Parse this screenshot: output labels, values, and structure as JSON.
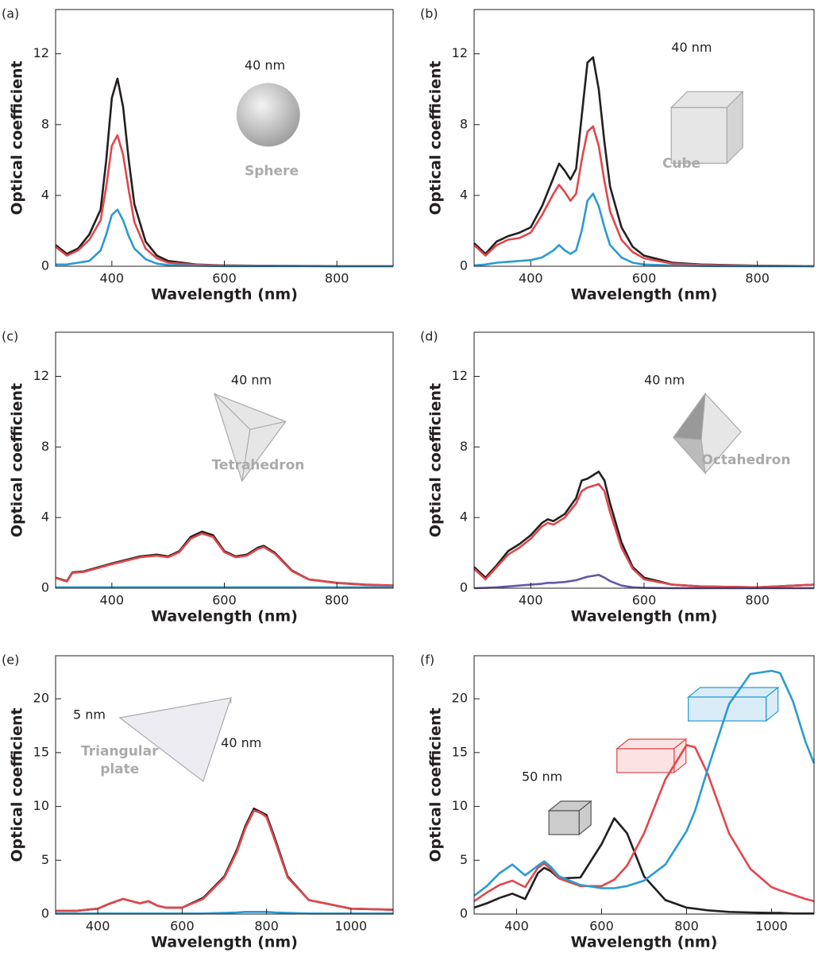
{
  "chart_data": [
    {
      "type": "line",
      "panel_label": "(a)",
      "x_label": "Wavelength (nm)",
      "y_label": "Optical coefficient",
      "xlim": [
        300,
        900
      ],
      "ylim": [
        0,
        14.5
      ],
      "xticks": [
        400,
        600,
        800
      ],
      "yticks": [
        0,
        4,
        8,
        12
      ],
      "annotations": [
        "40 nm",
        "Sphere"
      ],
      "x": [
        300,
        320,
        340,
        360,
        380,
        390,
        400,
        410,
        420,
        430,
        440,
        460,
        480,
        500,
        550,
        600,
        700,
        800,
        900
      ],
      "series": [
        {
          "color": "#231f20",
          "values": [
            1.2,
            0.7,
            1.0,
            1.8,
            3.2,
            6.0,
            9.5,
            10.6,
            9.0,
            6.0,
            3.5,
            1.4,
            0.6,
            0.3,
            0.1,
            0.05,
            0.02,
            0.01,
            0.01
          ]
        },
        {
          "color": "#e0474c",
          "values": [
            1.1,
            0.6,
            0.9,
            1.5,
            2.6,
            4.5,
            6.8,
            7.4,
            6.3,
            4.3,
            2.5,
            1.0,
            0.45,
            0.2,
            0.08,
            0.04,
            0.02,
            0.01,
            0.01
          ]
        },
        {
          "color": "#2a9bd0",
          "values": [
            0.1,
            0.1,
            0.2,
            0.3,
            0.9,
            1.8,
            2.9,
            3.2,
            2.6,
            1.7,
            1.0,
            0.4,
            0.15,
            0.07,
            0.03,
            0.01,
            0.01,
            0,
            0
          ]
        }
      ]
    },
    {
      "type": "line",
      "panel_label": "(b)",
      "x_label": "Wavelength (nm)",
      "y_label": "Optical coefficient",
      "xlim": [
        300,
        900
      ],
      "ylim": [
        0,
        14.5
      ],
      "xticks": [
        400,
        600,
        800
      ],
      "yticks": [
        0,
        4,
        8,
        12
      ],
      "annotations": [
        "40 nm",
        "Cube"
      ],
      "x": [
        300,
        320,
        340,
        360,
        380,
        400,
        420,
        440,
        450,
        460,
        470,
        480,
        490,
        500,
        510,
        520,
        530,
        540,
        560,
        580,
        600,
        650,
        700,
        800,
        900
      ],
      "series": [
        {
          "color": "#231f20",
          "values": [
            1.3,
            0.7,
            1.4,
            1.7,
            1.9,
            2.2,
            3.4,
            5.0,
            5.8,
            5.4,
            4.9,
            5.5,
            8.5,
            11.5,
            11.8,
            10.0,
            7.0,
            4.5,
            2.2,
            1.1,
            0.6,
            0.2,
            0.1,
            0.03,
            0.01
          ]
        },
        {
          "color": "#e0474c",
          "values": [
            1.2,
            0.6,
            1.2,
            1.5,
            1.6,
            1.9,
            2.9,
            4.1,
            4.6,
            4.2,
            3.7,
            4.1,
            6.0,
            7.6,
            7.9,
            6.8,
            4.8,
            3.1,
            1.5,
            0.8,
            0.45,
            0.15,
            0.07,
            0.02,
            0.01
          ]
        },
        {
          "color": "#2a9bd0",
          "values": [
            0.05,
            0.1,
            0.2,
            0.25,
            0.3,
            0.35,
            0.5,
            0.9,
            1.2,
            0.9,
            0.7,
            0.9,
            2.0,
            3.7,
            4.1,
            3.4,
            2.2,
            1.2,
            0.5,
            0.2,
            0.1,
            0.04,
            0.02,
            0,
            0
          ]
        }
      ]
    },
    {
      "type": "line",
      "panel_label": "(c)",
      "x_label": "Wavelength (nm)",
      "y_label": "Optical coefficient",
      "xlim": [
        300,
        900
      ],
      "ylim": [
        0,
        14.5
      ],
      "xticks": [
        400,
        600,
        800
      ],
      "yticks": [
        0,
        4,
        8,
        12
      ],
      "annotations": [
        "40 nm",
        "Tetrahedron"
      ],
      "x": [
        300,
        320,
        330,
        350,
        400,
        450,
        480,
        500,
        520,
        540,
        560,
        580,
        600,
        620,
        640,
        660,
        670,
        690,
        720,
        750,
        800,
        850,
        900
      ],
      "series": [
        {
          "color": "#231f20",
          "values": [
            0.6,
            0.4,
            0.9,
            0.95,
            1.4,
            1.8,
            1.9,
            1.8,
            2.1,
            2.9,
            3.2,
            3.0,
            2.1,
            1.8,
            1.9,
            2.3,
            2.4,
            2.0,
            1.0,
            0.5,
            0.3,
            0.2,
            0.15
          ]
        },
        {
          "color": "#e0474c",
          "values": [
            0.58,
            0.38,
            0.87,
            0.92,
            1.36,
            1.75,
            1.84,
            1.75,
            2.04,
            2.8,
            3.1,
            2.9,
            2.04,
            1.75,
            1.84,
            2.23,
            2.33,
            1.94,
            0.97,
            0.49,
            0.29,
            0.19,
            0.15
          ]
        },
        {
          "color": "#2a9bd0",
          "values": [
            0.05,
            0.05,
            0.05,
            0.05,
            0.05,
            0.05,
            0.05,
            0.05,
            0.05,
            0.05,
            0.05,
            0.05,
            0.05,
            0.05,
            0.05,
            0.05,
            0.05,
            0.05,
            0.05,
            0.05,
            0.05,
            0.05,
            0.05
          ]
        }
      ]
    },
    {
      "type": "line",
      "panel_label": "(d)",
      "x_label": "Wavelength (nm)",
      "y_label": "Optical coefficient",
      "xlim": [
        300,
        900
      ],
      "ylim": [
        0,
        14.5
      ],
      "xticks": [
        400,
        600,
        800
      ],
      "yticks": [
        0,
        4,
        8,
        12
      ],
      "annotations": [
        "40 nm",
        "Octahedron"
      ],
      "x": [
        300,
        320,
        340,
        360,
        380,
        400,
        420,
        430,
        440,
        460,
        480,
        490,
        500,
        510,
        520,
        530,
        540,
        560,
        580,
        600,
        650,
        700,
        800,
        900
      ],
      "series": [
        {
          "color": "#231f20",
          "values": [
            1.2,
            0.6,
            1.3,
            2.1,
            2.5,
            3.0,
            3.7,
            3.9,
            3.8,
            4.2,
            5.1,
            6.1,
            6.2,
            6.4,
            6.6,
            6.1,
            4.8,
            2.6,
            1.2,
            0.6,
            0.2,
            0.1,
            0.05,
            0.2
          ]
        },
        {
          "color": "#e0474c",
          "values": [
            1.1,
            0.5,
            1.2,
            1.9,
            2.3,
            2.8,
            3.5,
            3.7,
            3.6,
            4.0,
            4.8,
            5.5,
            5.7,
            5.8,
            5.9,
            5.5,
            4.3,
            2.3,
            1.1,
            0.5,
            0.2,
            0.1,
            0.05,
            0.2
          ]
        },
        {
          "color": "#6656a8",
          "values": [
            0,
            0.02,
            0.05,
            0.1,
            0.15,
            0.2,
            0.25,
            0.3,
            0.3,
            0.35,
            0.45,
            0.55,
            0.65,
            0.7,
            0.75,
            0.6,
            0.4,
            0.15,
            0.05,
            0.02,
            0,
            0,
            0,
            0
          ]
        }
      ]
    },
    {
      "type": "line",
      "panel_label": "(e)",
      "x_label": "Wavelength (nm)",
      "y_label": "Optical coefficient",
      "xlim": [
        300,
        1100
      ],
      "ylim": [
        0,
        24
      ],
      "xticks": [
        400,
        600,
        800,
        1000
      ],
      "yticks": [
        0,
        5,
        10,
        15,
        20
      ],
      "annotations": [
        "5 nm",
        "40 nm",
        "Triangular",
        "plate"
      ],
      "x": [
        300,
        350,
        400,
        430,
        460,
        490,
        500,
        520,
        540,
        560,
        600,
        650,
        700,
        730,
        750,
        770,
        780,
        790,
        800,
        820,
        850,
        900,
        1000,
        1100
      ],
      "series": [
        {
          "color": "#231f20",
          "values": [
            0.3,
            0.3,
            0.5,
            1.0,
            1.4,
            1.1,
            1.0,
            1.2,
            0.8,
            0.6,
            0.6,
            1.5,
            3.5,
            6.0,
            8.2,
            9.8,
            9.6,
            9.4,
            9.2,
            7.0,
            3.5,
            1.3,
            0.5,
            0.4
          ]
        },
        {
          "color": "#e0474c",
          "values": [
            0.3,
            0.3,
            0.5,
            1.0,
            1.4,
            1.1,
            1.0,
            1.2,
            0.8,
            0.6,
            0.6,
            1.4,
            3.4,
            5.8,
            8.0,
            9.6,
            9.5,
            9.3,
            9.0,
            6.8,
            3.4,
            1.3,
            0.5,
            0.4
          ]
        },
        {
          "color": "#2a9bd0",
          "values": [
            0.05,
            0.05,
            0.05,
            0.05,
            0.05,
            0.05,
            0.05,
            0.05,
            0.05,
            0.05,
            0.05,
            0.05,
            0.1,
            0.15,
            0.2,
            0.2,
            0.2,
            0.2,
            0.2,
            0.15,
            0.1,
            0.05,
            0.05,
            0.05
          ]
        }
      ]
    },
    {
      "type": "line",
      "panel_label": "(f)",
      "x_label": "Wavelength (nm)",
      "y_label": "Optical coefficient",
      "xlim": [
        300,
        1100
      ],
      "ylim": [
        0,
        24
      ],
      "xticks": [
        400,
        600,
        800,
        1000
      ],
      "yticks": [
        0,
        5,
        10,
        15,
        20
      ],
      "annotations": [
        "50 nm"
      ],
      "x": [
        300,
        330,
        360,
        390,
        420,
        450,
        465,
        480,
        500,
        550,
        600,
        630,
        660,
        700,
        750,
        800,
        820,
        850,
        900,
        950,
        1000,
        1020,
        1050,
        1080,
        1100
      ],
      "series": [
        {
          "color": "#231f20",
          "values": [
            0.6,
            1.0,
            1.5,
            1.9,
            1.4,
            3.8,
            4.3,
            4.0,
            3.3,
            3.4,
            6.5,
            8.9,
            7.5,
            3.5,
            1.3,
            0.6,
            0.5,
            0.35,
            0.2,
            0.15,
            0.1,
            0.1,
            0.05,
            0.05,
            0.05
          ]
        },
        {
          "color": "#e0474c",
          "values": [
            1.2,
            2.0,
            2.7,
            3.1,
            2.5,
            4.3,
            4.7,
            4.2,
            3.3,
            2.6,
            2.6,
            3.2,
            4.5,
            7.5,
            12.5,
            15.7,
            15.5,
            13.0,
            7.5,
            4.2,
            2.5,
            2.2,
            1.8,
            1.4,
            1.2
          ]
        },
        {
          "color": "#2a9bd0",
          "values": [
            1.7,
            2.6,
            3.8,
            4.6,
            3.6,
            4.5,
            4.9,
            4.4,
            3.5,
            2.7,
            2.4,
            2.4,
            2.6,
            3.1,
            4.6,
            7.7,
            9.6,
            13.5,
            19.5,
            22.3,
            22.6,
            22.4,
            19.8,
            16.0,
            14.0
          ]
        }
      ]
    }
  ]
}
